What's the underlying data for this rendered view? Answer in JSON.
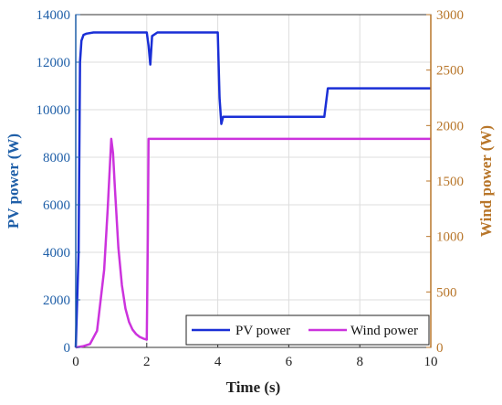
{
  "chart_data": {
    "type": "line",
    "title": "",
    "xlabel": "Time (s)",
    "ylabel_left": "PV power (W)",
    "ylabel_right": "Wind power (W)",
    "xlim": [
      0,
      10
    ],
    "ylim_left": [
      0,
      14000
    ],
    "ylim_right": [
      0,
      3000
    ],
    "x_ticks": [
      0,
      2,
      4,
      6,
      8,
      10
    ],
    "y_left_ticks": [
      0,
      2000,
      4000,
      6000,
      8000,
      10000,
      12000,
      14000
    ],
    "y_right_ticks": [
      0,
      500,
      1000,
      1500,
      2000,
      2500,
      3000
    ],
    "grid": true,
    "legend_position": "bottom-right",
    "series": [
      {
        "name": "PV power",
        "axis": "left",
        "color": "#1a2fd6",
        "x": [
          0,
          0.08,
          0.12,
          0.16,
          0.22,
          0.3,
          0.5,
          1.0,
          2.0,
          2.05,
          2.1,
          2.15,
          2.3,
          3.0,
          4.0,
          4.05,
          4.1,
          4.15,
          4.3,
          5.0,
          6.0,
          7.0,
          7.1,
          7.2,
          8.0,
          9.0,
          10.0
        ],
        "y": [
          0,
          4000,
          12000,
          12900,
          13150,
          13200,
          13250,
          13250,
          13250,
          12700,
          11900,
          13100,
          13250,
          13250,
          13250,
          10500,
          9400,
          9700,
          9700,
          9700,
          9700,
          9700,
          10900,
          10900,
          10900,
          10900,
          10900
        ]
      },
      {
        "name": "Wind power",
        "axis": "right",
        "color": "#cc33dd",
        "x": [
          0,
          0.2,
          0.4,
          0.6,
          0.8,
          0.9,
          1.0,
          1.05,
          1.1,
          1.2,
          1.3,
          1.4,
          1.5,
          1.6,
          1.7,
          1.8,
          1.9,
          2.0,
          2.03,
          2.05,
          2.1,
          2.5,
          3.0,
          4.0,
          5.0,
          6.0,
          7.0,
          8.0,
          9.0,
          10.0
        ],
        "y": [
          0,
          10,
          30,
          150,
          700,
          1250,
          1880,
          1750,
          1450,
          900,
          560,
          350,
          230,
          160,
          120,
          95,
          80,
          70,
          1000,
          1880,
          1880,
          1880,
          1880,
          1880,
          1880,
          1880,
          1880,
          1880,
          1880,
          1880
        ]
      }
    ],
    "colors": {
      "left_axis": "#1f5fa8",
      "right_axis": "#b8762a",
      "grid": "#dddddd"
    }
  }
}
